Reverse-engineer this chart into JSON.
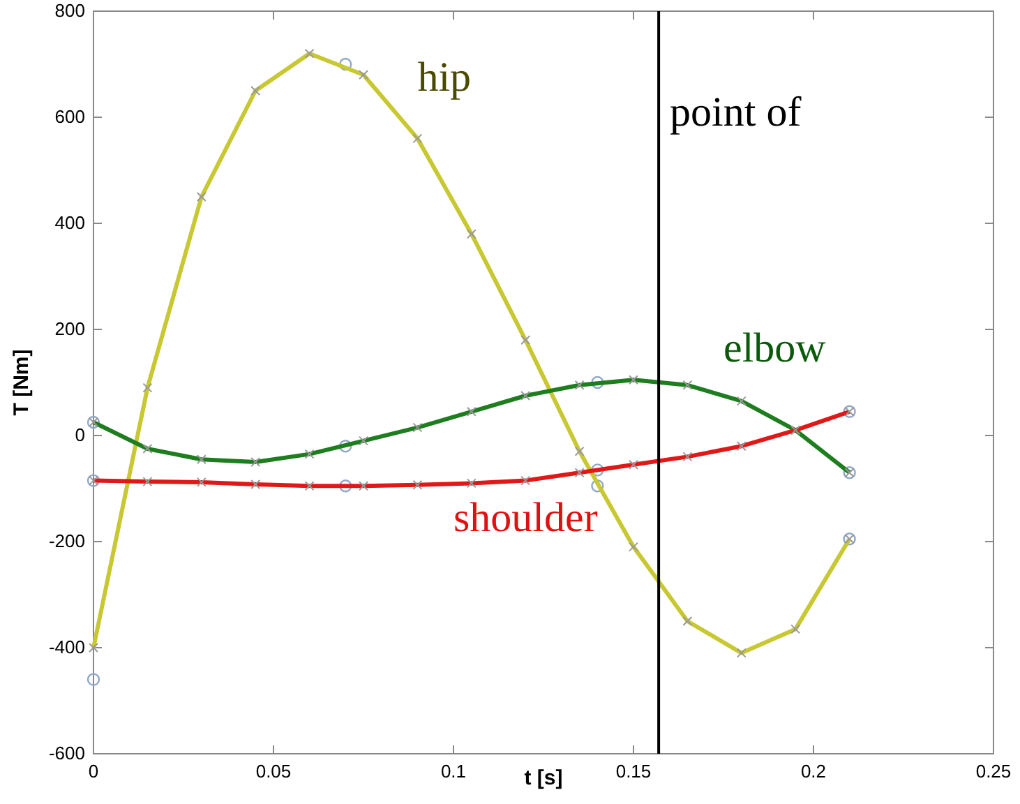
{
  "chart_data": {
    "type": "line",
    "xlabel": "t [s]",
    "ylabel": "T [Nm]",
    "xlim": [
      0,
      0.25
    ],
    "xticks": [
      0,
      0.05,
      0.1,
      0.15,
      0.2,
      0.25
    ],
    "ylim": [
      -600,
      800
    ],
    "yticks": [
      -600,
      -400,
      -200,
      0,
      200,
      400,
      600,
      800
    ],
    "marker": "cross",
    "grid": false,
    "x": [
      0,
      0.015,
      0.03,
      0.045,
      0.06,
      0.075,
      0.09,
      0.105,
      0.12,
      0.135,
      0.15,
      0.165,
      0.18,
      0.195,
      0.21
    ],
    "series": [
      {
        "name": "hip",
        "color": "#c8c832",
        "values": [
          -400,
          90,
          450,
          650,
          720,
          680,
          560,
          380,
          180,
          -30,
          -210,
          -350,
          -410,
          -365,
          -195
        ]
      },
      {
        "name": "elbow",
        "color": "#1e7d1e",
        "values": [
          25,
          -25,
          -45,
          -50,
          -35,
          -10,
          15,
          45,
          75,
          95,
          105,
          95,
          65,
          10,
          -70
        ]
      },
      {
        "name": "shoulder",
        "color": "#e01818",
        "values": [
          -85,
          -87,
          -88,
          -92,
          -95,
          -95,
          -93,
          -90,
          -85,
          -70,
          -55,
          -40,
          -20,
          10,
          45
        ]
      },
      {
        "type": "scatter",
        "marker": "circle",
        "color": "#8fa8c8",
        "x": [
          0,
          0.07,
          0.14,
          0.21,
          0,
          0.07,
          0.14,
          0.21,
          0,
          0.07,
          0.14,
          0.21
        ],
        "values": [
          -460,
          700,
          -95,
          -195,
          25,
          -20,
          100,
          -70,
          -85,
          -95,
          -65,
          45
        ]
      }
    ],
    "ref_lines": [
      {
        "axis": "x",
        "value": 0.157,
        "label": "point of",
        "color": "#000000"
      }
    ]
  }
}
